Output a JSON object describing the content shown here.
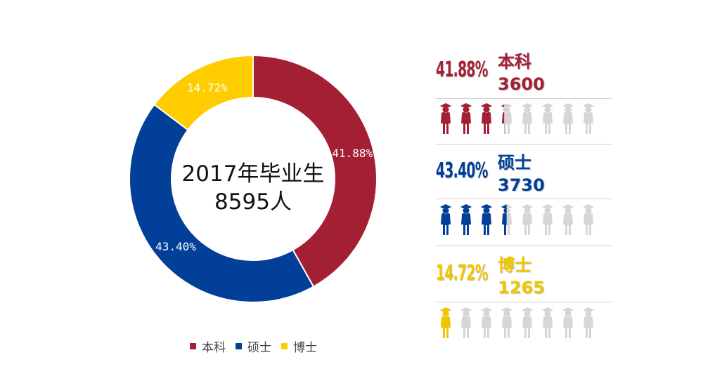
{
  "chart_data": {
    "type": "pie",
    "donut": true,
    "categories": [
      "本科",
      "硕士",
      "博士"
    ],
    "values": [
      41.88,
      43.4,
      14.72
    ],
    "value_labels": [
      "41.88%",
      "43.40%",
      "14.72%"
    ],
    "colors": [
      "#A31F34",
      "#023F99",
      "#FFCC00"
    ],
    "legend_position": "bottom",
    "center_label": [
      "2017年毕业生",
      "8595人"
    ]
  },
  "legend": [
    {
      "label": "本科",
      "color": "#A31F34"
    },
    {
      "label": "硕士",
      "color": "#023F99"
    },
    {
      "label": "博士",
      "color": "#FFCC00"
    }
  ],
  "stats": [
    {
      "pct": "41.88%",
      "degree": "本科",
      "count": "3600",
      "color": "#A31F34",
      "filled_icons": 3.35,
      "total_icons": 8
    },
    {
      "pct": "43.40%",
      "degree": "硕士",
      "count": "3730",
      "color": "#023F99",
      "filled_icons": 3.47,
      "total_icons": 8
    },
    {
      "pct": "14.72%",
      "degree": "博士",
      "count": "1265",
      "color": "#EFC600",
      "filled_icons": 1.18,
      "total_icons": 8
    }
  ],
  "icon_name": "graduate-person-icon",
  "icon_empty_color": "#D6D6D6"
}
